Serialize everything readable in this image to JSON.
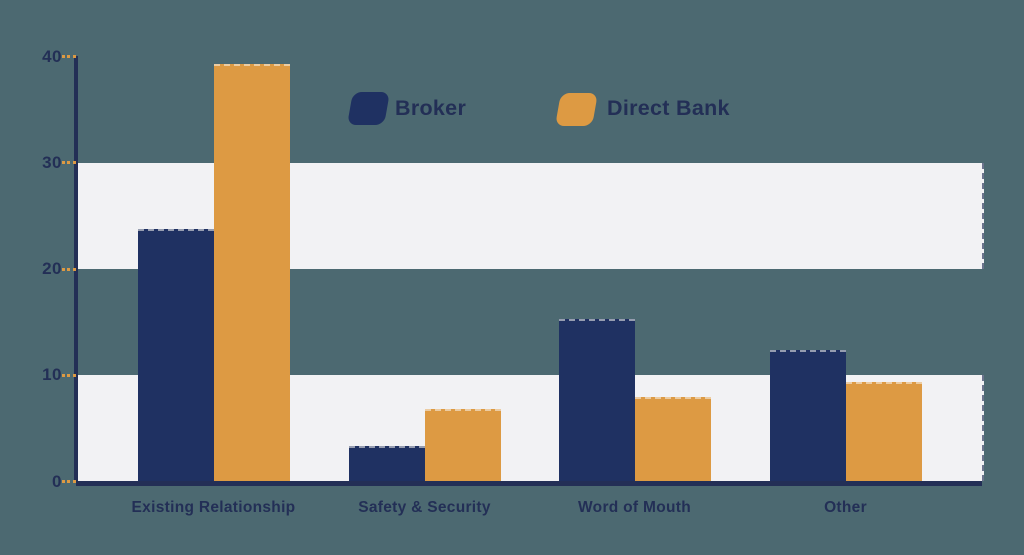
{
  "background_color": "#4C6971",
  "colors": {
    "navy": "#1F3162",
    "orange": "#DD9A43",
    "band_white": "#F2F2F4",
    "axis_navy": "#232F56",
    "tick_orange": "#DD9A43"
  },
  "legend": {
    "items": [
      {
        "label": "Broker",
        "color": "#1F3162"
      },
      {
        "label": "Direct Bank",
        "color": "#DD9A43"
      }
    ]
  },
  "chart_data": {
    "type": "bar",
    "categories": [
      "Existing Relationship",
      "Safety & Security",
      "Word of Mouth",
      "Other"
    ],
    "series": [
      {
        "name": "Broker",
        "color": "#1F3162",
        "values": [
          23.8,
          3.3,
          15.3,
          12.4
        ]
      },
      {
        "name": "Direct Bank",
        "color": "#DD9A43",
        "values": [
          39.3,
          6.8,
          8.0,
          9.4
        ]
      }
    ],
    "title": "",
    "xlabel": "",
    "ylabel": "",
    "ylim": [
      0,
      40
    ],
    "yticks": [
      0,
      10,
      20,
      30,
      40
    ],
    "grid_bands": [
      [
        0,
        10
      ],
      [
        20,
        30
      ]
    ],
    "grid": "alternating horizontal bands",
    "legend_position": "top-center"
  }
}
